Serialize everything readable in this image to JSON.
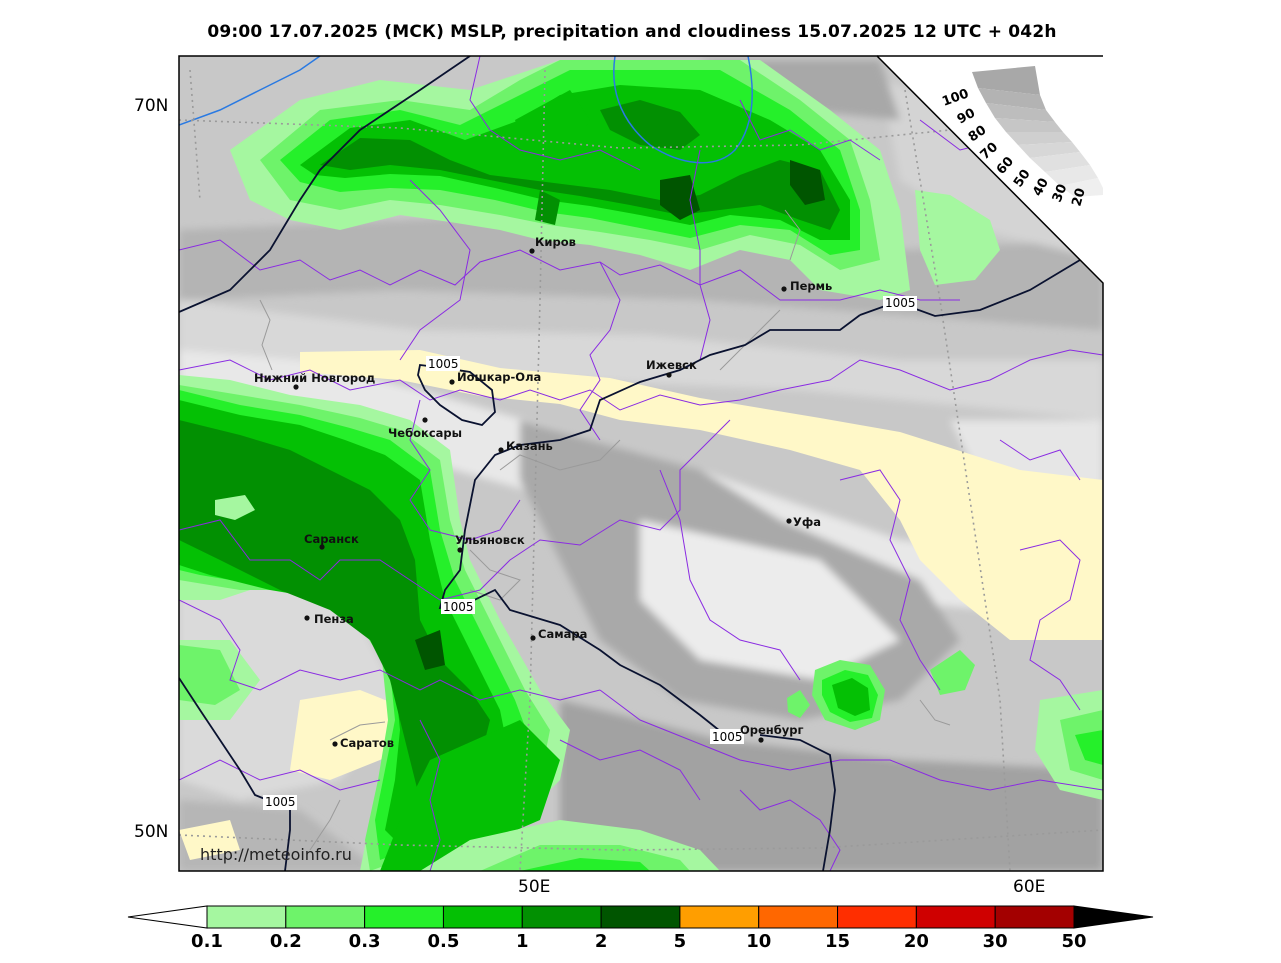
{
  "title": "09:00 17.07.2025 (МСК) MSLP, precipitation and cloudiness 15.07.2025 12 UTC + 042h",
  "lat_labels": [
    "70N",
    "50N"
  ],
  "lon_labels": [
    "50E",
    "60E"
  ],
  "watermark": "http://meteoinfo.ru",
  "isobar_value": "1005",
  "cities": [
    {
      "name": "Киров"
    },
    {
      "name": "Пермь"
    },
    {
      "name": "Ижевск"
    },
    {
      "name": "Нижний Новгород"
    },
    {
      "name": "Йошкар-Ола"
    },
    {
      "name": "Чебоксары"
    },
    {
      "name": "Казань"
    },
    {
      "name": "Уфа"
    },
    {
      "name": "Саранск"
    },
    {
      "name": "Ульяновск"
    },
    {
      "name": "Пенза"
    },
    {
      "name": "Самара"
    },
    {
      "name": "Оренбург"
    },
    {
      "name": "Саратов"
    }
  ],
  "cloudiness_scale": [
    "100",
    "90",
    "80",
    "70",
    "60",
    "50",
    "40",
    "30",
    "20"
  ],
  "precip_scale": {
    "labels": [
      "0.1",
      "0.2",
      "0.3",
      "0.5",
      "1",
      "2",
      "5",
      "10",
      "15",
      "20",
      "30",
      "50"
    ],
    "colors": [
      "#a5f7a0",
      "#6ef36a",
      "#25f02a",
      "#04c004",
      "#029002",
      "#005500",
      "#ff9e00",
      "#ff6700",
      "#ff2e00",
      "#cf0000",
      "#a30000"
    ]
  },
  "colors": {
    "light_green": "#a5f7a0",
    "green": "#25f02a",
    "mid_green": "#04c004",
    "dark_green": "#029002",
    "darkest_green": "#005500",
    "cream": "#fff8c8",
    "border": "#8a2be2",
    "isobar": "#0a1230",
    "coast": "#2a7ae2"
  }
}
